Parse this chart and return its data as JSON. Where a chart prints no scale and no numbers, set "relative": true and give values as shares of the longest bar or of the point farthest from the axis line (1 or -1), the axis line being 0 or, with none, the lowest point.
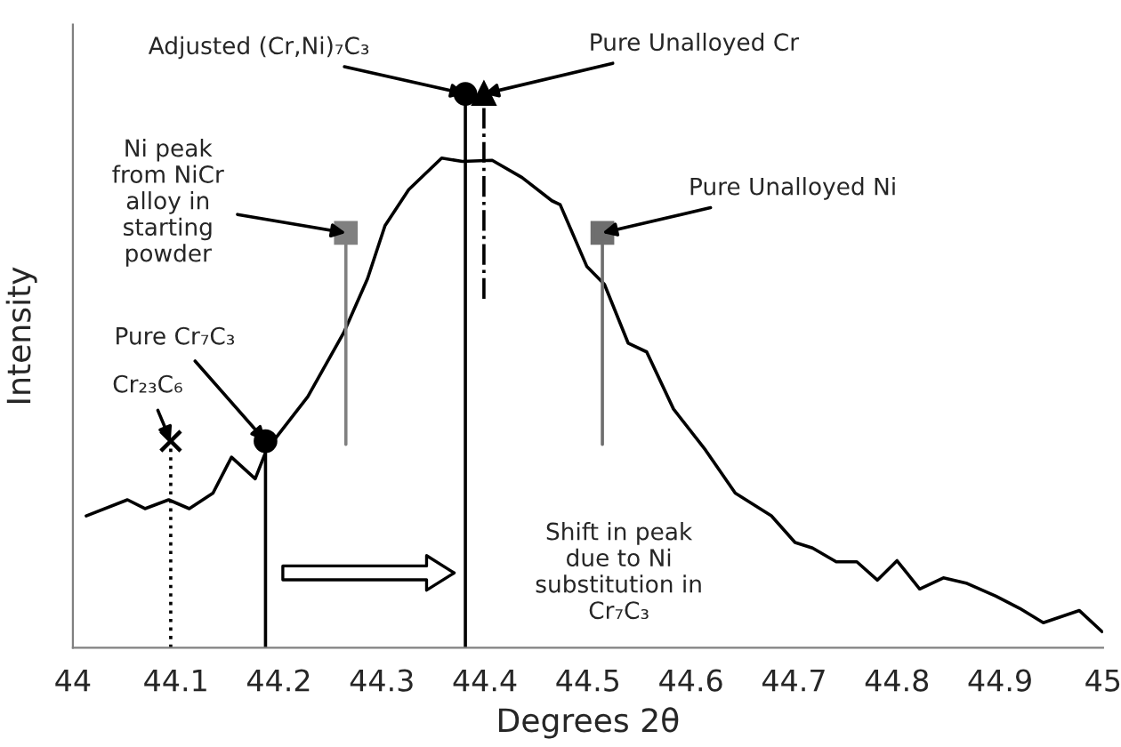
{
  "chart_data": {
    "type": "line",
    "xlabel": "Degrees 2θ",
    "ylabel": "Intensity",
    "relative": true,
    "tick_labels": "x",
    "legend": false,
    "grid": false,
    "xlim": [
      44,
      45
    ],
    "xticks": [
      44,
      44.1,
      44.2,
      44.3,
      44.4,
      44.5,
      44.6,
      44.7,
      44.8,
      44.9,
      45
    ],
    "series": [
      {
        "color": "#000000",
        "marker": "none",
        "line_style": "solid",
        "x": [
          44.013,
          44.053,
          44.07,
          44.093,
          44.113,
          44.136,
          44.154,
          44.177,
          44.188,
          44.228,
          44.263,
          44.286,
          44.303,
          44.326,
          44.358,
          44.378,
          44.407,
          44.436,
          44.465,
          44.473,
          44.499,
          44.516,
          44.539,
          44.557,
          44.583,
          44.614,
          44.643,
          44.678,
          44.701,
          44.718,
          44.741,
          44.761,
          44.781,
          44.8,
          44.822,
          44.845,
          44.868,
          44.896,
          44.919,
          44.942,
          44.977,
          44.999
        ],
        "values": [
          0.238,
          0.267,
          0.251,
          0.267,
          0.251,
          0.279,
          0.344,
          0.305,
          0.357,
          0.453,
          0.569,
          0.666,
          0.762,
          0.827,
          0.884,
          0.878,
          0.88,
          0.849,
          0.807,
          0.8,
          0.688,
          0.656,
          0.55,
          0.534,
          0.431,
          0.357,
          0.279,
          0.238,
          0.19,
          0.18,
          0.155,
          0.155,
          0.122,
          0.157,
          0.106,
          0.126,
          0.116,
          0.093,
          0.071,
          0.045,
          0.067,
          0.029
        ]
      },
      {
        "color": "#000000",
        "marker": "cross",
        "line_style": "dotted",
        "x": [
          44.095,
          44.095
        ],
        "values": [
          0,
          0.373
        ]
      },
      {
        "color": "#000000",
        "marker": "circle",
        "line_style": "solid",
        "x": [
          44.187,
          44.187
        ],
        "values": [
          0,
          0.373
        ]
      },
      {
        "color": "#808080",
        "marker": "square",
        "line_style": "solid",
        "x": [
          44.265,
          44.265
        ],
        "values": [
          0.367,
          0.749
        ]
      },
      {
        "color": "#000000",
        "marker": "circle",
        "line_style": "solid",
        "x": [
          44.381,
          44.381
        ],
        "values": [
          0,
          1
        ]
      },
      {
        "color": "#000000",
        "marker": "triangle",
        "line_style": "dashdot",
        "x": [
          44.399,
          44.399
        ],
        "values": [
          0.63,
          1
        ]
      },
      {
        "color": "#6e6e6e",
        "marker": "square",
        "line_style": "solid",
        "x": [
          44.514,
          44.514
        ],
        "values": [
          0.367,
          0.749
        ]
      }
    ],
    "annotations": [
      {
        "text": "Cr₂₃C₆",
        "x": 44.095,
        "y": 0.373
      },
      {
        "text": "Pure Cr₇C₃",
        "x": 44.187,
        "y": 0.373
      },
      {
        "text": "Ni peak\nfrom NiCr\nalloy in\nstarting\npowder",
        "x": 44.265,
        "y": 0.749
      },
      {
        "text": "Adjusted (Cr,Ni)₇C₃",
        "x": 44.381,
        "y": 1
      },
      {
        "text": "Pure Unalloyed Cr",
        "x": 44.399,
        "y": 1
      },
      {
        "text": "Pure Unalloyed Ni",
        "x": 44.514,
        "y": 0.749
      },
      "Shift in peak\ndue to Ni\nsubstitution in\nCr₇C₃"
    ]
  }
}
